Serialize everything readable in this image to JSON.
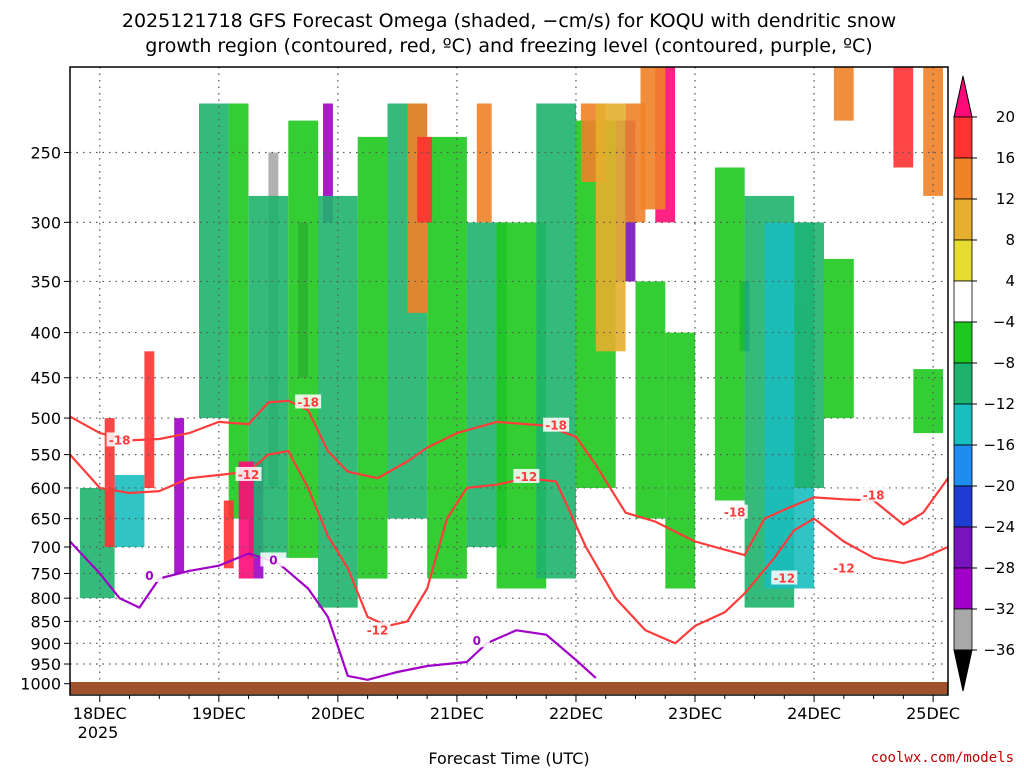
{
  "chart_data": {
    "type": "heatmap",
    "title_lines": [
      "2025121718 GFS Forecast Omega (shaded, −cm/s) for KOQU with dendritic snow",
      "growth region (contoured, red, ºC) and freezing level (contoured, purple, ºC)"
    ],
    "xlabel": "Forecast Time (UTC)",
    "ylabel": "",
    "x_tick_labels": [
      "18DEC",
      "19DEC",
      "20DEC",
      "21DEC",
      "22DEC",
      "23DEC",
      "24DEC",
      "25DEC"
    ],
    "x_year_label": "2025",
    "x_range_hours": [
      -6,
      171
    ],
    "y_tick_labels": [
      250,
      300,
      350,
      400,
      450,
      500,
      550,
      600,
      650,
      700,
      750,
      800,
      850,
      900,
      950,
      1000
    ],
    "y_range_hpa": [
      200,
      1030
    ],
    "y_scale": "log-pressure",
    "grid": true,
    "colorbar": {
      "labels": [
        "20",
        "16",
        "12",
        "8",
        "4",
        "−4",
        "−8",
        "−12",
        "−16",
        "−20",
        "−24",
        "−28",
        "−32",
        "−36"
      ],
      "bin_colors": [
        "#ff0a78",
        "#ff3232",
        "#f08228",
        "#e6af2d",
        "#e6dc32",
        "#ffffff",
        "#1ec81e",
        "#1eb46e",
        "#19bebe",
        "#1e8cf0",
        "#1e3cd2",
        "#7814be",
        "#a000c8",
        "#a8a8a8",
        "#000000"
      ]
    },
    "shading": {
      "description_of_bins": "omega in -cm/s",
      "cells": [
        {
          "t": [
            15,
            17
          ],
          "p": [
            500,
            750
          ],
          "bin": 12
        },
        {
          "t": [
            31,
            33
          ],
          "p": [
            560,
            760
          ],
          "bin": 12
        },
        {
          "t": [
            34,
            36
          ],
          "p": [
            250,
            600
          ],
          "bin": 13
        },
        {
          "t": [
            40,
            42
          ],
          "p": [
            300,
            450
          ],
          "bin": 12
        },
        {
          "t": [
            45,
            47
          ],
          "p": [
            220,
            300
          ],
          "bin": 12
        },
        {
          "t": [
            104,
            108
          ],
          "p": [
            230,
            350
          ],
          "bin": 11
        },
        {
          "t": [
            129,
            131
          ],
          "p": [
            350,
            420
          ],
          "bin": 10
        },
        {
          "t": [
            140,
            142
          ],
          "p": [
            370,
            400
          ],
          "bin": 9
        },
        {
          "t": [
            -4,
            3
          ],
          "p": [
            600,
            800
          ],
          "bin": 7
        },
        {
          "t": [
            3,
            9
          ],
          "p": [
            580,
            700
          ],
          "bin": 8
        },
        {
          "t": [
            20,
            26
          ],
          "p": [
            220,
            500
          ],
          "bin": 7
        },
        {
          "t": [
            26,
            30
          ],
          "p": [
            220,
            650
          ],
          "bin": 6
        },
        {
          "t": [
            30,
            38
          ],
          "p": [
            280,
            720
          ],
          "bin": 7
        },
        {
          "t": [
            38,
            44
          ],
          "p": [
            230,
            720
          ],
          "bin": 6
        },
        {
          "t": [
            44,
            52
          ],
          "p": [
            280,
            820
          ],
          "bin": 7
        },
        {
          "t": [
            52,
            58
          ],
          "p": [
            240,
            760
          ],
          "bin": 6
        },
        {
          "t": [
            58,
            66
          ],
          "p": [
            220,
            650
          ],
          "bin": 7
        },
        {
          "t": [
            66,
            74
          ],
          "p": [
            240,
            760
          ],
          "bin": 6
        },
        {
          "t": [
            74,
            82
          ],
          "p": [
            300,
            700
          ],
          "bin": 7
        },
        {
          "t": [
            80,
            90
          ],
          "p": [
            300,
            780
          ],
          "bin": 6
        },
        {
          "t": [
            88,
            96
          ],
          "p": [
            220,
            760
          ],
          "bin": 7
        },
        {
          "t": [
            96,
            104
          ],
          "p": [
            230,
            600
          ],
          "bin": 6
        },
        {
          "t": [
            108,
            114
          ],
          "p": [
            350,
            650
          ],
          "bin": 6
        },
        {
          "t": [
            114,
            120
          ],
          "p": [
            400,
            780
          ],
          "bin": 6
        },
        {
          "t": [
            124,
            130
          ],
          "p": [
            260,
            620
          ],
          "bin": 6
        },
        {
          "t": [
            130,
            140
          ],
          "p": [
            280,
            820
          ],
          "bin": 7
        },
        {
          "t": [
            134,
            144
          ],
          "p": [
            300,
            780
          ],
          "bin": 8
        },
        {
          "t": [
            140,
            146
          ],
          "p": [
            300,
            600
          ],
          "bin": 7
        },
        {
          "t": [
            146,
            152
          ],
          "p": [
            330,
            500
          ],
          "bin": 6
        },
        {
          "t": [
            164,
            170
          ],
          "p": [
            440,
            520
          ],
          "bin": 6
        },
        {
          "t": [
            1,
            3
          ],
          "p": [
            500,
            700
          ],
          "bin": 1
        },
        {
          "t": [
            9,
            11
          ],
          "p": [
            420,
            600
          ],
          "bin": 1
        },
        {
          "t": [
            28,
            31
          ],
          "p": [
            560,
            760
          ],
          "bin": 0
        },
        {
          "t": [
            25,
            27
          ],
          "p": [
            620,
            740
          ],
          "bin": 1
        },
        {
          "t": [
            62,
            66
          ],
          "p": [
            220,
            380
          ],
          "bin": 2
        },
        {
          "t": [
            64,
            67
          ],
          "p": [
            240,
            300
          ],
          "bin": 1
        },
        {
          "t": [
            76,
            79
          ],
          "p": [
            220,
            300
          ],
          "bin": 2
        },
        {
          "t": [
            97,
            102
          ],
          "p": [
            220,
            270
          ],
          "bin": 2
        },
        {
          "t": [
            100,
            106
          ],
          "p": [
            220,
            420
          ],
          "bin": 3
        },
        {
          "t": [
            106,
            110
          ],
          "p": [
            220,
            300
          ],
          "bin": 2
        },
        {
          "t": [
            112,
            116
          ],
          "p": [
            200,
            300
          ],
          "bin": 0
        },
        {
          "t": [
            109,
            114
          ],
          "p": [
            200,
            290
          ],
          "bin": 2
        },
        {
          "t": [
            160,
            164
          ],
          "p": [
            200,
            260
          ],
          "bin": 1
        },
        {
          "t": [
            148,
            152
          ],
          "p": [
            200,
            230
          ],
          "bin": 2
        },
        {
          "t": [
            166,
            170
          ],
          "p": [
            200,
            280
          ],
          "bin": 2
        }
      ]
    },
    "contours": [
      {
        "label": "-18",
        "color": "#ff3c3c",
        "points": [
          [
            -6,
            498
          ],
          [
            0,
            520
          ],
          [
            6,
            530
          ],
          [
            12,
            528
          ],
          [
            18,
            520
          ],
          [
            24,
            505
          ],
          [
            30,
            508
          ],
          [
            34,
            480
          ],
          [
            38,
            478
          ],
          [
            42,
            490
          ],
          [
            46,
            545
          ],
          [
            50,
            575
          ],
          [
            56,
            585
          ],
          [
            62,
            560
          ],
          [
            66,
            540
          ],
          [
            72,
            520
          ],
          [
            80,
            505
          ],
          [
            90,
            510
          ],
          [
            96,
            525
          ],
          [
            100,
            565
          ],
          [
            106,
            640
          ],
          [
            112,
            655
          ],
          [
            120,
            690
          ],
          [
            126,
            705
          ],
          [
            130,
            715
          ],
          [
            134,
            650
          ],
          [
            138,
            635
          ],
          [
            144,
            615
          ],
          [
            150,
            618
          ],
          [
            156,
            620
          ],
          [
            162,
            660
          ],
          [
            166,
            640
          ],
          [
            171,
            585
          ]
        ],
        "labels_at": [
          [
            4,
            530
          ],
          [
            42,
            480
          ],
          [
            92,
            510
          ],
          [
            128,
            640
          ],
          [
            156,
            612
          ]
        ]
      },
      {
        "label": "-12",
        "color": "#ff3c3c",
        "points": [
          [
            -6,
            550
          ],
          [
            0,
            600
          ],
          [
            6,
            608
          ],
          [
            12,
            605
          ],
          [
            18,
            585
          ],
          [
            24,
            580
          ],
          [
            30,
            575
          ],
          [
            34,
            550
          ],
          [
            38,
            545
          ],
          [
            42,
            600
          ],
          [
            46,
            680
          ],
          [
            50,
            740
          ],
          [
            54,
            840
          ],
          [
            58,
            860
          ],
          [
            62,
            850
          ],
          [
            66,
            780
          ],
          [
            70,
            650
          ],
          [
            74,
            600
          ],
          [
            80,
            595
          ],
          [
            86,
            585
          ],
          [
            92,
            590
          ],
          [
            98,
            700
          ],
          [
            104,
            800
          ],
          [
            110,
            870
          ],
          [
            116,
            900
          ],
          [
            120,
            860
          ],
          [
            126,
            830
          ],
          [
            130,
            790
          ],
          [
            136,
            720
          ],
          [
            140,
            670
          ],
          [
            144,
            650
          ],
          [
            150,
            690
          ],
          [
            156,
            720
          ],
          [
            162,
            730
          ],
          [
            166,
            720
          ],
          [
            171,
            700
          ]
        ],
        "labels_at": [
          [
            30,
            580
          ],
          [
            56,
            870
          ],
          [
            86,
            583
          ],
          [
            138,
            760
          ],
          [
            150,
            740
          ]
        ]
      },
      {
        "label": "0",
        "color": "#a000c8",
        "points": [
          [
            -6,
            690
          ],
          [
            0,
            750
          ],
          [
            4,
            800
          ],
          [
            8,
            820
          ],
          [
            12,
            760
          ],
          [
            18,
            745
          ],
          [
            24,
            735
          ],
          [
            30,
            712
          ],
          [
            36,
            730
          ],
          [
            42,
            780
          ],
          [
            46,
            840
          ],
          [
            50,
            980
          ],
          [
            54,
            990
          ],
          [
            60,
            970
          ],
          [
            66,
            955
          ],
          [
            70,
            950
          ],
          [
            74,
            945
          ],
          [
            78,
            900
          ],
          [
            84,
            870
          ],
          [
            90,
            880
          ],
          [
            96,
            940
          ],
          [
            100,
            985
          ]
        ],
        "labels_at": [
          [
            10,
            755
          ],
          [
            35,
            725
          ],
          [
            76,
            895
          ]
        ]
      }
    ],
    "credit": "coolwx.com/models"
  }
}
